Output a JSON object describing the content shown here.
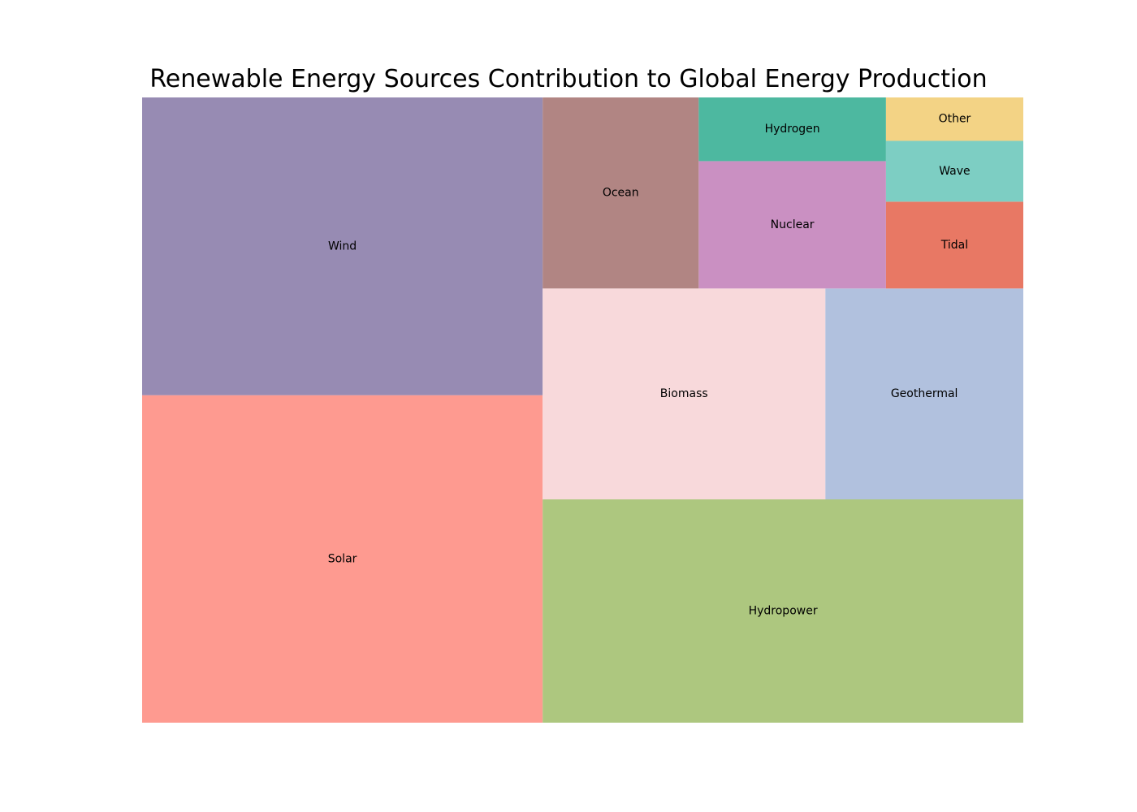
{
  "chart_data": {
    "type": "treemap",
    "title": "Renewable Energy Sources Contribution to Global Energy Production",
    "xlabel": "",
    "ylabel": "",
    "grid": false,
    "legend": "none",
    "xlim": [
      0,
      100
    ],
    "ylim": [
      0,
      100
    ],
    "categories": [
      "Solar",
      "Wind",
      "Hydropower",
      "Biomass",
      "Geothermal",
      "Ocean",
      "Nuclear",
      "Hydrogen",
      "Tidal",
      "Wave",
      "Other"
    ],
    "values": [
      22,
      20,
      18,
      10,
      7,
      5,
      4,
      2,
      2,
      1.4,
      1
    ],
    "colors": [
      "#fe9a90",
      "#978bb3",
      "#adc77f",
      "#f8d9db",
      "#b1c1de",
      "#b18583",
      "#ca90c2",
      "#4db8a0",
      "#e87864",
      "#7dcec3",
      "#f3d385"
    ]
  }
}
